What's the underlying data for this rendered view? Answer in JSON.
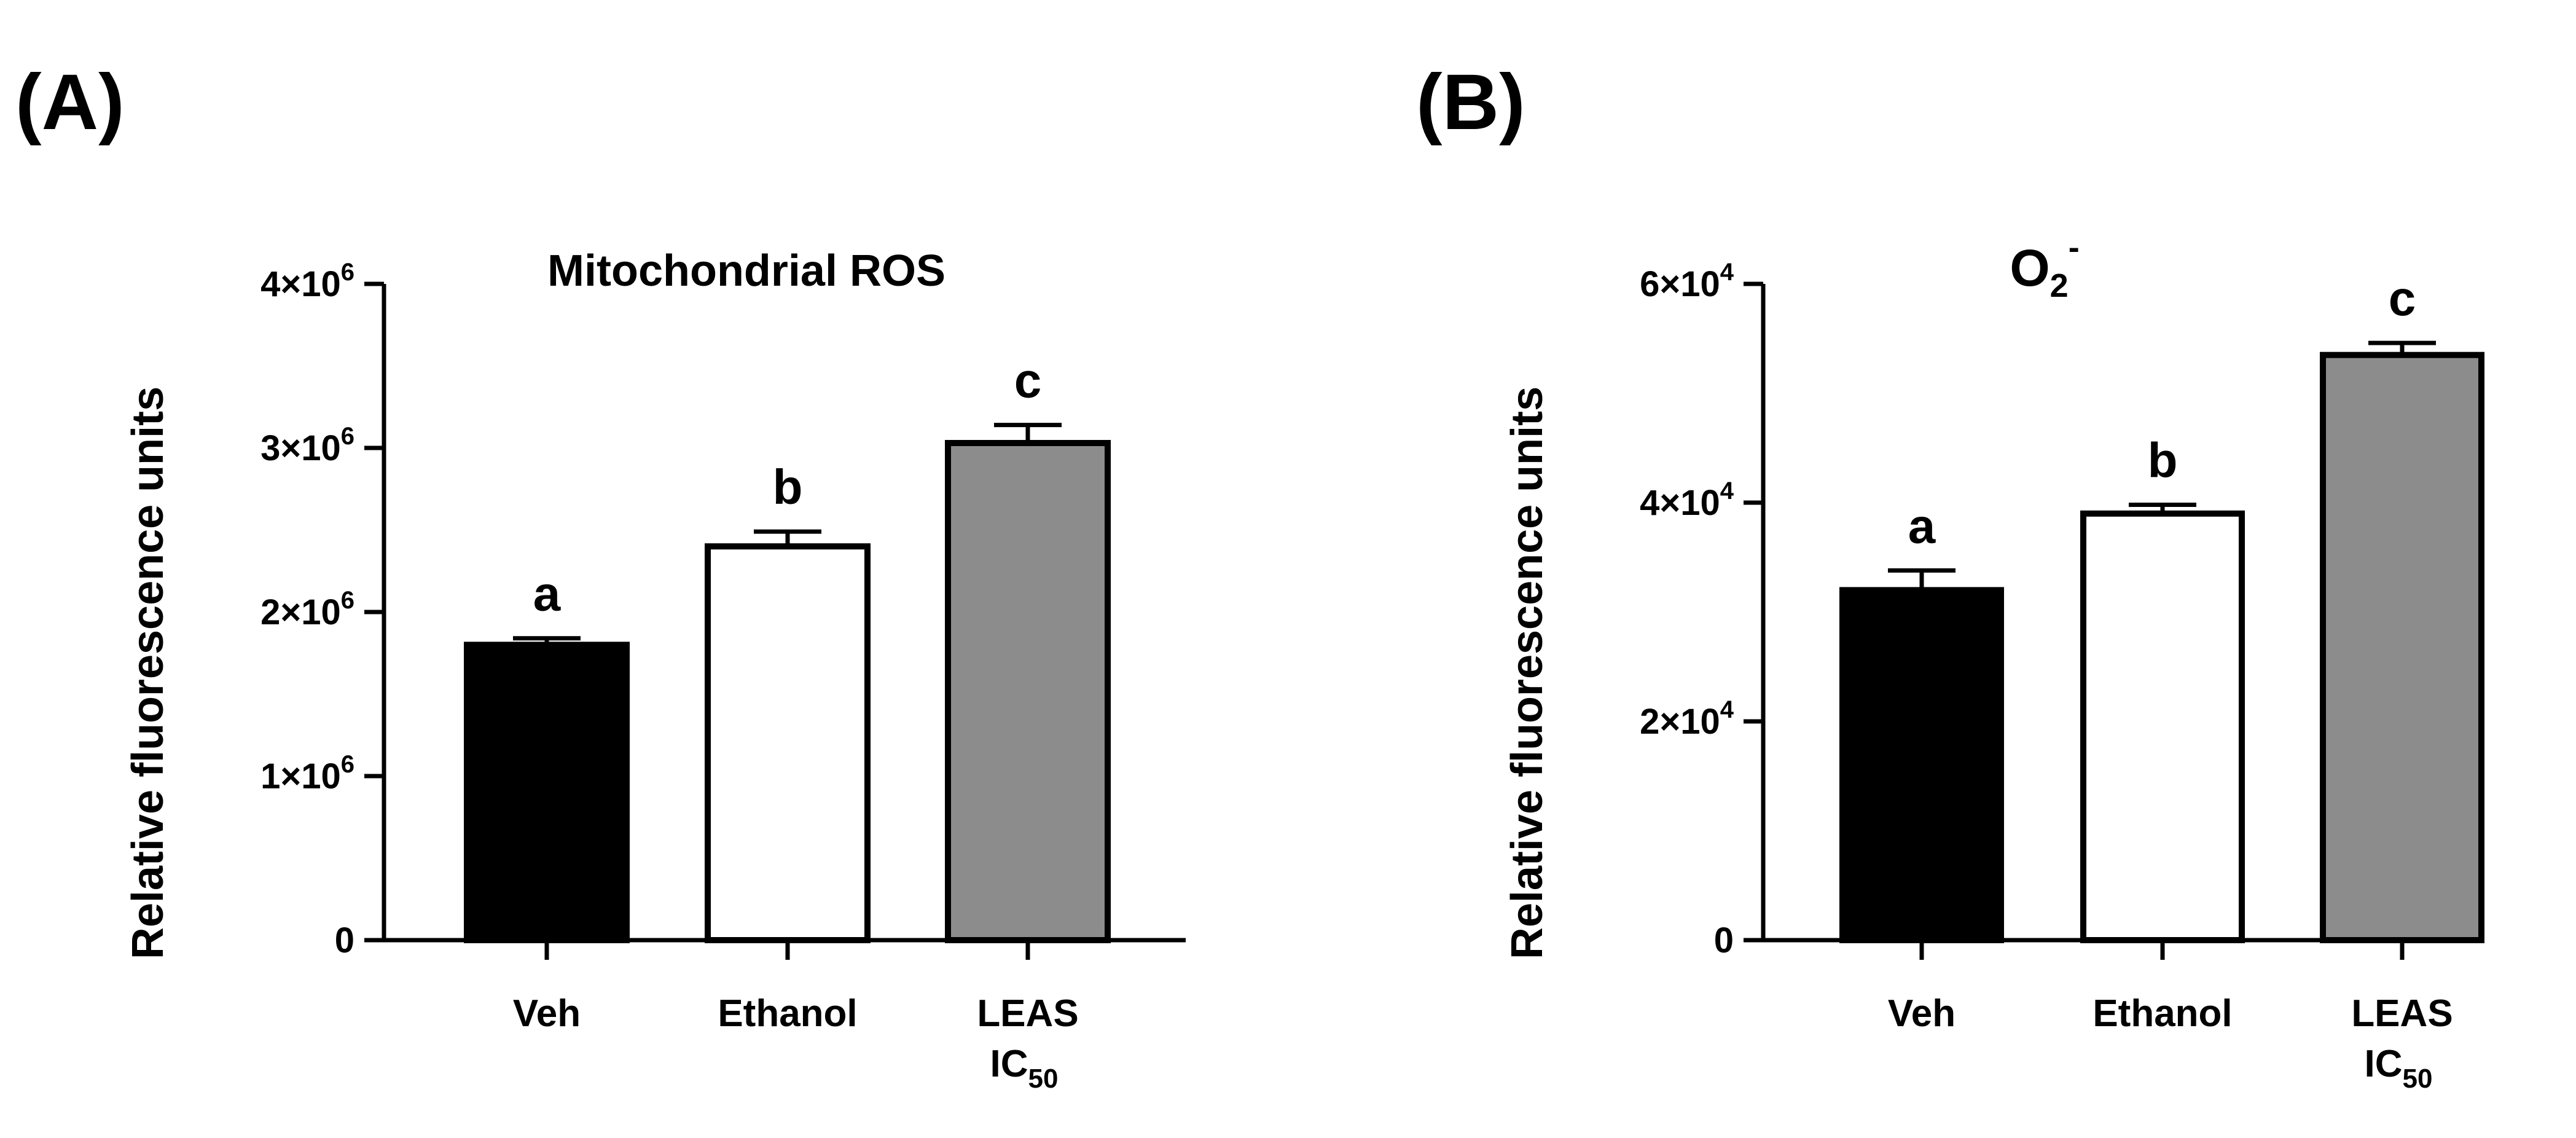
{
  "chart_data": [
    {
      "type": "bar",
      "panel_label": "(A)",
      "title": "Mitochondrial ROS",
      "ylabel": "Relative fluorescence units",
      "ylim": [
        0,
        4000000
      ],
      "yticks": [
        {
          "value": 0,
          "mant": "0",
          "exp": ""
        },
        {
          "value": 1000000,
          "mant": "1×10",
          "exp": "6"
        },
        {
          "value": 2000000,
          "mant": "2×10",
          "exp": "6"
        },
        {
          "value": 3000000,
          "mant": "3×10",
          "exp": "6"
        },
        {
          "value": 4000000,
          "mant": "4×10",
          "exp": "6"
        }
      ],
      "categories": [
        {
          "line1": "Veh",
          "line2": "",
          "sub": ""
        },
        {
          "line1": "Ethanol",
          "line2": "",
          "sub": ""
        },
        {
          "line1": "LEAS",
          "line2": "IC",
          "sub": "50"
        }
      ],
      "values": [
        1800000,
        2400000,
        3030000
      ],
      "errors": [
        40000,
        90000,
        110000
      ],
      "letters": [
        "a",
        "b",
        "c"
      ],
      "colors": [
        "#000000",
        "#ffffff",
        "#8c8c8c"
      ]
    },
    {
      "type": "bar",
      "panel_label": "(B)",
      "title": "O2-",
      "title_main": "O",
      "title_sub": "2",
      "title_sup": "-",
      "ylabel": "Relative fluorescence units",
      "ylim": [
        0,
        60000
      ],
      "yticks": [
        {
          "value": 0,
          "mant": "0",
          "exp": ""
        },
        {
          "value": 20000,
          "mant": "2×10",
          "exp": "4"
        },
        {
          "value": 40000,
          "mant": "4×10",
          "exp": "4"
        },
        {
          "value": 60000,
          "mant": "6×10",
          "exp": "4"
        }
      ],
      "categories": [
        {
          "line1": "Veh",
          "line2": "",
          "sub": ""
        },
        {
          "line1": "Ethanol",
          "line2": "",
          "sub": ""
        },
        {
          "line1": "LEAS",
          "line2": "IC",
          "sub": "50"
        }
      ],
      "values": [
        32000,
        39000,
        53500
      ],
      "errors": [
        1800,
        800,
        1100
      ],
      "letters": [
        "a",
        "b",
        "c"
      ],
      "colors": [
        "#000000",
        "#ffffff",
        "#8c8c8c"
      ]
    }
  ]
}
